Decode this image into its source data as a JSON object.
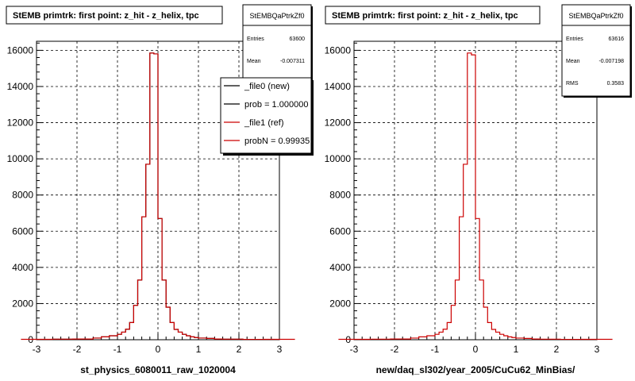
{
  "footer_text": "",
  "chart_data": [
    {
      "type": "histogram",
      "title": "StEMB primtrk: first point: z_hit - z_helix, tpc",
      "xlabel": "st_physics_6080011_raw_1020004",
      "ylabel": "",
      "xlim": [
        -3,
        3
      ],
      "ylim": [
        0,
        16500
      ],
      "x_ticks": [
        "-3",
        "-2",
        "-1",
        "0",
        "1",
        "2",
        "3"
      ],
      "y_ticks": [
        "0",
        "2000",
        "4000",
        "6000",
        "8000",
        "10000",
        "12000",
        "14000",
        "16000"
      ],
      "grid": true,
      "bin_edges": [
        -2.6,
        -2.1,
        -1.6,
        -1.4,
        -1.2,
        -1.0,
        -0.9,
        -0.8,
        -0.7,
        -0.6,
        -0.5,
        -0.4,
        -0.3,
        -0.2,
        -0.1,
        0.0,
        0.1,
        0.2,
        0.3,
        0.4,
        0.5,
        0.6,
        0.7,
        0.8,
        0.9,
        1.0,
        1.2,
        1.4,
        1.6,
        2.1,
        2.6
      ],
      "series": [
        {
          "name": "_file0 (new)",
          "color": "#000000",
          "values": [
            30,
            40,
            90,
            160,
            220,
            300,
            420,
            580,
            950,
            1900,
            3300,
            6800,
            9700,
            15850,
            15800,
            6700,
            3300,
            1800,
            950,
            570,
            420,
            300,
            220,
            160,
            120,
            90,
            70,
            40,
            30,
            20
          ]
        },
        {
          "name": "_file1 (ref)",
          "color": "#cc0000",
          "values": [
            30,
            40,
            90,
            160,
            220,
            300,
            420,
            580,
            950,
            1900,
            3300,
            6800,
            9700,
            15850,
            15800,
            6700,
            3300,
            1800,
            950,
            570,
            420,
            300,
            220,
            160,
            120,
            90,
            70,
            40,
            30,
            20
          ]
        }
      ],
      "stats": {
        "title": "StEMBQaPtrkZf0",
        "rows": [
          {
            "label": "Entries",
            "value": "63600"
          },
          {
            "label": "Mean",
            "value": "-0.007311"
          }
        ]
      },
      "legend": {
        "placement": "top-right",
        "entries": [
          {
            "label": "_file0 (new)",
            "color": "#000000"
          },
          {
            "label": "prob = 1.000000",
            "color": "#000000"
          },
          {
            "label": "_file1 (ref)",
            "color": "#cc0000"
          },
          {
            "label": "probN = 0.99935",
            "color": "#cc0000"
          }
        ]
      }
    },
    {
      "type": "histogram",
      "title": "StEMB primtrk: first point: z_hit - z_helix, tpc",
      "xlabel": "new/daq_sl302/year_2005/CuCu62_MinBias/",
      "ylabel": "",
      "xlim": [
        -3,
        3
      ],
      "ylim": [
        0,
        16500
      ],
      "x_ticks": [
        "-3",
        "-2",
        "-1",
        "0",
        "1",
        "2",
        "3"
      ],
      "y_ticks": [
        "0",
        "2000",
        "4000",
        "6000",
        "8000",
        "10000",
        "12000",
        "14000",
        "16000"
      ],
      "grid": true,
      "bin_edges": [
        -2.6,
        -2.1,
        -1.6,
        -1.4,
        -1.2,
        -1.0,
        -0.9,
        -0.8,
        -0.7,
        -0.6,
        -0.5,
        -0.4,
        -0.3,
        -0.2,
        -0.1,
        0.0,
        0.1,
        0.2,
        0.3,
        0.4,
        0.5,
        0.6,
        0.7,
        0.8,
        0.9,
        1.0,
        1.2,
        1.4,
        1.6,
        2.1,
        2.6
      ],
      "series": [
        {
          "name": "",
          "color": "#cc0000",
          "values": [
            30,
            40,
            90,
            160,
            220,
            300,
            420,
            580,
            950,
            1900,
            3300,
            6800,
            9700,
            15850,
            15750,
            6700,
            3300,
            1800,
            950,
            570,
            420,
            300,
            220,
            160,
            120,
            90,
            70,
            40,
            30,
            20
          ]
        }
      ],
      "stats": {
        "title": "StEMBQaPtrkZf0",
        "rows": [
          {
            "label": "Entries",
            "value": "63616"
          },
          {
            "label": "Mean",
            "value": "-0.007198"
          },
          {
            "label": "RMS",
            "value": "0.3583"
          }
        ]
      },
      "legend": null
    }
  ]
}
